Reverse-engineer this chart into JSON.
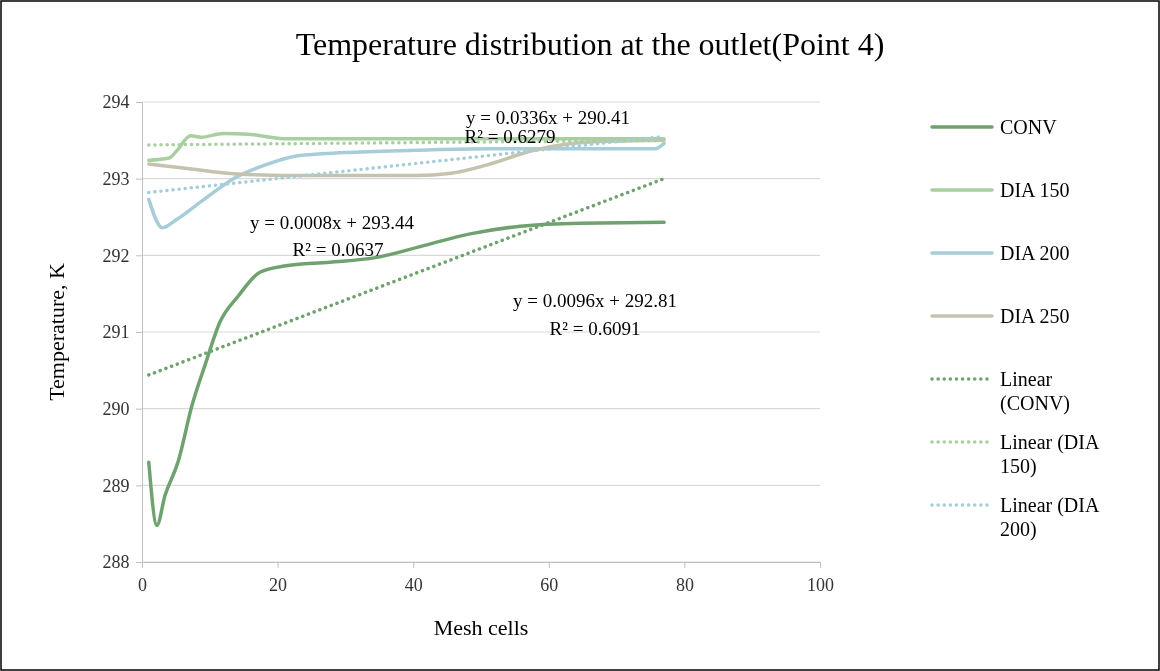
{
  "chart_data": {
    "type": "line",
    "title": "Temperature distribution at the outlet(Point 4)",
    "xlabel": "Mesh cells",
    "ylabel": "Temperature, K",
    "xlim": [
      0,
      100
    ],
    "xticks": [
      0,
      20,
      40,
      60,
      80,
      100
    ],
    "ylim": [
      288,
      294
    ],
    "yticks": [
      288,
      289,
      290,
      291,
      292,
      293,
      294
    ],
    "grid": "y",
    "legend": "right",
    "line_style": "solid",
    "marker": "none",
    "series": [
      {
        "name": "CONV",
        "color": "#6fa26f",
        "x": [
          1,
          2.2,
          3.4,
          5.3,
          7.4,
          9.3,
          11.5,
          14.2,
          17.4,
          21,
          27.7,
          34.4,
          41.7,
          48.4,
          55.8,
          64.6,
          77
        ],
        "values": [
          289.3,
          288.48,
          288.87,
          289.3,
          290.05,
          290.57,
          291.13,
          291.47,
          291.78,
          291.86,
          291.91,
          291.97,
          292.13,
          292.28,
          292.38,
          292.42,
          292.43
        ]
      },
      {
        "name": "DIA 150",
        "color": "#a8cfa0",
        "x": [
          1,
          4,
          5,
          7.2,
          8.7,
          12,
          15.6,
          21.4,
          35,
          50,
          77
        ],
        "values": [
          293.24,
          293.27,
          293.35,
          293.56,
          293.54,
          293.59,
          293.58,
          293.52,
          293.52,
          293.52,
          293.52
        ]
      },
      {
        "name": "DIA 200",
        "color": "#a6cdd8",
        "x": [
          1,
          3,
          5,
          8.7,
          13.5,
          18.2,
          23,
          29.8,
          40.4,
          50.9,
          75.7,
          77
        ],
        "values": [
          292.73,
          292.36,
          292.46,
          292.7,
          293.0,
          293.18,
          293.3,
          293.34,
          293.37,
          293.39,
          293.39,
          293.46
        ]
      },
      {
        "name": "DIA 250",
        "color": "#c5c2ad",
        "x": [
          1,
          6.1,
          14,
          24.6,
          40.4,
          45.6,
          50.9,
          57.8,
          66.7,
          77
        ],
        "values": [
          293.19,
          293.14,
          293.06,
          293.04,
          293.04,
          293.07,
          293.18,
          293.37,
          293.48,
          293.5
        ]
      },
      {
        "name": "Linear (CONV)",
        "color": "#6fa26f",
        "type": "line",
        "line_style": "dotted",
        "x": [
          1,
          77
        ],
        "values": [
          290.44,
          293.0
        ]
      },
      {
        "name": "Linear (DIA 150)",
        "color": "#a8cfa0",
        "type": "line",
        "line_style": "dotted",
        "x": [
          1,
          77
        ],
        "values": [
          293.44,
          293.5
        ]
      },
      {
        "name": "Linear (DIA 200)",
        "color": "#a6cdd8",
        "type": "line",
        "line_style": "dotted",
        "x": [
          1,
          77
        ],
        "values": [
          292.82,
          293.55
        ]
      }
    ],
    "annotations": [
      "y = 0.0336x + 290.41",
      "R² = 0.6279",
      "y = 0.0008x + 293.44",
      "R² = 0.0637",
      "y = 0.0096x + 292.81",
      "R² = 0.6091"
    ]
  }
}
